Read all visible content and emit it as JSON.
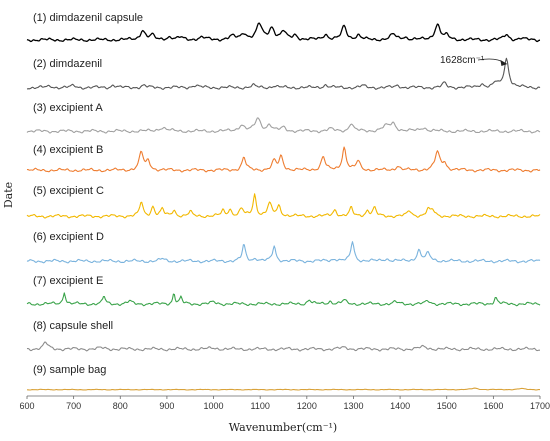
{
  "chart_data": {
    "type": "line",
    "xlabel": "Wavenumber(cm⁻¹)",
    "ylabel": "Date",
    "xlim": [
      600,
      1700
    ],
    "xticks": [
      600,
      700,
      800,
      900,
      1000,
      1100,
      1200,
      1300,
      1400,
      1500,
      1600,
      1700
    ],
    "annotation": {
      "text": "1628cm⁻¹",
      "x": 1628
    },
    "grid": false,
    "series": [
      {
        "name": "(1) dimdazenil capsule",
        "color": "#000000",
        "baseline": 0.12,
        "peaks": [
          [
            848,
            0.55,
            6
          ],
          [
            868,
            0.25,
            5
          ],
          [
            905,
            0.15,
            8
          ],
          [
            930,
            0.12,
            6
          ],
          [
            975,
            0.12,
            10
          ],
          [
            1040,
            0.18,
            8
          ],
          [
            1065,
            0.35,
            7
          ],
          [
            1098,
            0.85,
            7
          ],
          [
            1125,
            0.65,
            7
          ],
          [
            1150,
            0.45,
            6
          ],
          [
            1175,
            0.25,
            6
          ],
          [
            1240,
            0.3,
            6
          ],
          [
            1280,
            0.75,
            6
          ],
          [
            1310,
            0.25,
            6
          ],
          [
            1385,
            0.3,
            7
          ],
          [
            1410,
            0.15,
            6
          ],
          [
            1480,
            0.85,
            7
          ],
          [
            1500,
            0.2,
            6
          ],
          [
            1628,
            0.3,
            6
          ],
          [
            1660,
            0.08,
            6
          ]
        ]
      },
      {
        "name": "(2) dimdazenil",
        "color": "#555555",
        "baseline": 0.08,
        "peaks": [
          [
            650,
            0.08,
            6
          ],
          [
            700,
            0.1,
            6
          ],
          [
            785,
            0.15,
            5
          ],
          [
            850,
            0.12,
            6
          ],
          [
            960,
            0.12,
            8
          ],
          [
            1085,
            0.12,
            6
          ],
          [
            1130,
            0.1,
            6
          ],
          [
            1240,
            0.15,
            6
          ],
          [
            1320,
            0.1,
            6
          ],
          [
            1395,
            0.12,
            6
          ],
          [
            1495,
            0.25,
            5
          ],
          [
            1575,
            0.2,
            6
          ],
          [
            1605,
            0.25,
            5
          ],
          [
            1628,
            1.6,
            6
          ]
        ]
      },
      {
        "name": "(3) excipient A",
        "color": "#a0a0a0",
        "baseline": 0.1,
        "peaks": [
          [
            890,
            0.2,
            10
          ],
          [
            1060,
            0.35,
            7
          ],
          [
            1095,
            0.7,
            7
          ],
          [
            1120,
            0.35,
            6
          ],
          [
            1150,
            0.2,
            6
          ],
          [
            1250,
            0.12,
            8
          ],
          [
            1295,
            0.45,
            5
          ],
          [
            1370,
            0.25,
            10
          ],
          [
            1385,
            0.4,
            7
          ],
          [
            1450,
            0.2,
            8
          ]
        ]
      },
      {
        "name": "(4) excipient B",
        "color": "#ee7d31",
        "baseline": 0.1,
        "peaks": [
          [
            845,
            1.0,
            5
          ],
          [
            860,
            0.5,
            5
          ],
          [
            1065,
            0.7,
            5
          ],
          [
            1130,
            0.5,
            5
          ],
          [
            1145,
            0.75,
            5
          ],
          [
            1235,
            0.75,
            5
          ],
          [
            1280,
            1.25,
            5
          ],
          [
            1310,
            0.5,
            5
          ],
          [
            1395,
            0.25,
            5
          ],
          [
            1480,
            1.0,
            6
          ],
          [
            1495,
            0.4,
            5
          ]
        ]
      },
      {
        "name": "(5) excipient C",
        "color": "#f2b800",
        "baseline": 0.1,
        "peaks": [
          [
            845,
            0.8,
            4
          ],
          [
            870,
            0.55,
            4
          ],
          [
            890,
            0.4,
            4
          ],
          [
            915,
            0.35,
            4
          ],
          [
            950,
            0.25,
            4
          ],
          [
            1020,
            0.3,
            4
          ],
          [
            1035,
            0.4,
            4
          ],
          [
            1060,
            0.4,
            5
          ],
          [
            1088,
            1.2,
            4
          ],
          [
            1120,
            0.7,
            5
          ],
          [
            1140,
            0.55,
            5
          ],
          [
            1260,
            0.35,
            5
          ],
          [
            1295,
            0.45,
            4
          ],
          [
            1330,
            0.3,
            5
          ],
          [
            1345,
            0.45,
            4
          ],
          [
            1420,
            0.3,
            5
          ],
          [
            1460,
            0.35,
            5
          ],
          [
            1470,
            0.3,
            5
          ]
        ]
      },
      {
        "name": "(6) excipient D",
        "color": "#7ab3dd",
        "baseline": 0.05,
        "peaks": [
          [
            890,
            0.12,
            6
          ],
          [
            1065,
            0.9,
            4
          ],
          [
            1090,
            0.15,
            5
          ],
          [
            1130,
            0.85,
            4
          ],
          [
            1260,
            0.12,
            8
          ],
          [
            1298,
            1.1,
            4
          ],
          [
            1370,
            0.12,
            8
          ],
          [
            1440,
            0.6,
            5
          ],
          [
            1460,
            0.4,
            6
          ]
        ]
      },
      {
        "name": "(7) excipient E",
        "color": "#3aa34a",
        "baseline": 0.06,
        "peaks": [
          [
            680,
            0.7,
            3
          ],
          [
            765,
            0.45,
            3
          ],
          [
            820,
            0.15,
            5
          ],
          [
            915,
            0.6,
            3
          ],
          [
            930,
            0.35,
            3
          ],
          [
            1000,
            0.1,
            6
          ],
          [
            1205,
            0.25,
            4
          ],
          [
            1250,
            0.15,
            5
          ],
          [
            1280,
            0.2,
            5
          ],
          [
            1390,
            0.1,
            6
          ],
          [
            1460,
            0.15,
            6
          ],
          [
            1605,
            0.35,
            4
          ]
        ]
      },
      {
        "name": "(8) capsule shell",
        "color": "#8c8c8c",
        "baseline": 0.05,
        "peaks": [
          [
            640,
            0.35,
            6
          ],
          [
            760,
            0.06,
            10
          ],
          [
            1000,
            0.06,
            10
          ],
          [
            1280,
            0.08,
            10
          ],
          [
            1450,
            0.12,
            10
          ]
        ]
      },
      {
        "name": "(9) sample bag",
        "color": "#d9a23a",
        "baseline": 0.02,
        "peaks": [
          [
            1560,
            0.08,
            8
          ],
          [
            1660,
            0.06,
            8
          ]
        ]
      }
    ]
  }
}
